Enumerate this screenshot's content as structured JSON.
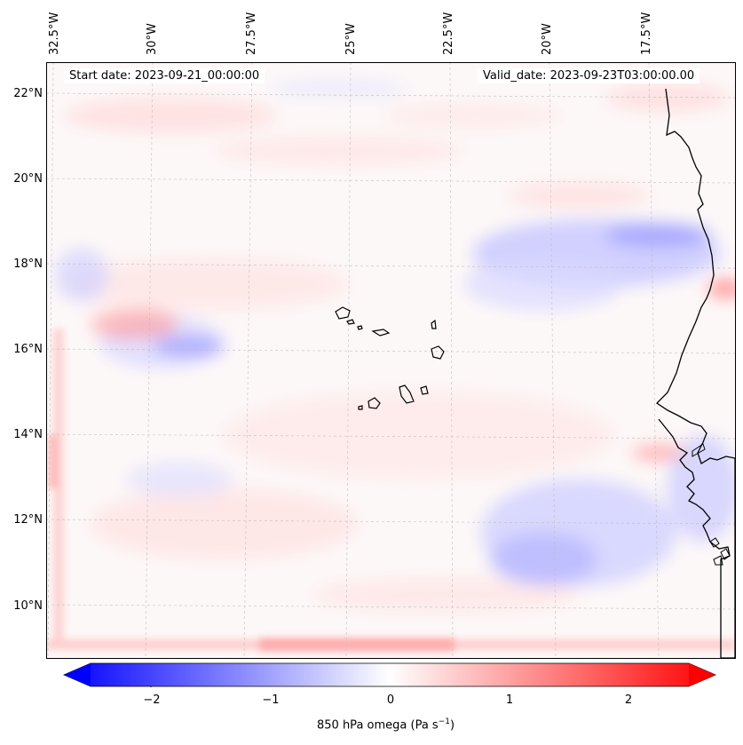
{
  "map": {
    "start_date_label": "Start date: 2023-09-21_00:00:00",
    "valid_date_label": "Valid_date: 2023-09-23T03:00:00.00",
    "lon_labels": [
      "32.5°W",
      "30°W",
      "27.5°W",
      "25°W",
      "22.5°W",
      "20°W",
      "17.5°W"
    ],
    "lat_labels": [
      "22°N",
      "20°N",
      "18°N",
      "16°N",
      "14°N",
      "12°N",
      "10°N"
    ],
    "colorbar": {
      "label": "850 hPa omega (Pa s",
      "label_exp": "−1",
      "label_close": ")",
      "ticks": [
        "−2",
        "−1",
        "0",
        "1",
        "2"
      ],
      "min": -2.7,
      "max": 2.7,
      "colormap": "bwr",
      "low_color": "#0000ff",
      "mid_color": "#ffffff",
      "high_color": "#ff0000"
    },
    "coastline_color": "#000000",
    "gridline_color": "#bbbbbb"
  }
}
